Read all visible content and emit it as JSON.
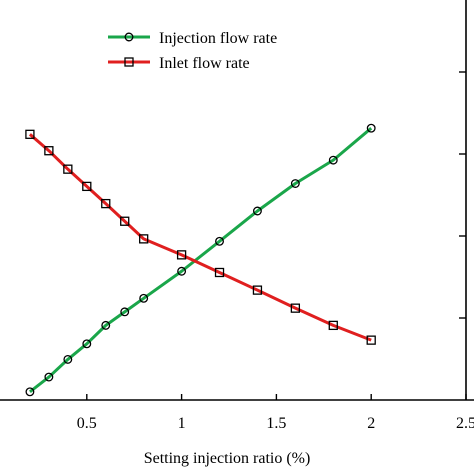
{
  "chart_data": {
    "type": "line",
    "title": "",
    "xlabel": "Setting injection ratio (%)",
    "ylabel_left": "",
    "ylabel_right": "",
    "xlim": [
      0,
      2.5
    ],
    "ylim": [
      0,
      1
    ],
    "x_ticks": [
      0,
      0.5,
      1,
      1.5,
      2,
      2.5
    ],
    "x_tick_labels": [
      "",
      "0.5",
      "1",
      "1.5",
      "2",
      "2.5"
    ],
    "y_tick_fractions": [
      0.2,
      0.4,
      0.6,
      0.8
    ],
    "grid": false,
    "legend_position": "top-center",
    "x": [
      0.2,
      0.3,
      0.4,
      0.5,
      0.6,
      0.7,
      0.8,
      1.0,
      1.2,
      1.4,
      1.6,
      1.8,
      2.0
    ],
    "series": [
      {
        "name": "Injection flow rate",
        "color": "#1aa64a",
        "marker": "circle",
        "values": [
          0.02,
          0.056,
          0.099,
          0.137,
          0.182,
          0.215,
          0.248,
          0.314,
          0.387,
          0.461,
          0.528,
          0.585,
          0.663
        ]
      },
      {
        "name": "Inlet flow rate",
        "color": "#e01f1f",
        "marker": "square",
        "values": [
          0.648,
          0.608,
          0.563,
          0.521,
          0.479,
          0.436,
          0.393,
          0.354,
          0.311,
          0.268,
          0.224,
          0.182,
          0.146
        ]
      }
    ]
  }
}
